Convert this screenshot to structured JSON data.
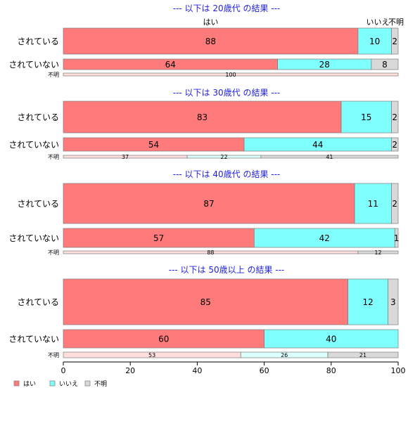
{
  "chart_data": {
    "type": "bar",
    "orientation": "horizontal",
    "stacked": true,
    "xlim": [
      0,
      100
    ],
    "xticks": [
      0,
      20,
      40,
      60,
      80,
      100
    ],
    "column_headers": [
      "はい",
      "いいえ",
      "不明"
    ],
    "series_colors": [
      "#ff7b7b",
      "#80ffff",
      "#d9d9d9"
    ],
    "legend": {
      "position": "bottom-left",
      "entries": [
        "はい",
        "いいえ",
        "不明"
      ]
    },
    "panels": [
      {
        "title": "--- 以下は 20歳代 の結果 ---",
        "categories": [
          "されている",
          "されていない",
          "不明"
        ],
        "series": [
          {
            "name": "はい",
            "values": [
              88,
              64,
              100
            ]
          },
          {
            "name": "いいえ",
            "values": [
              10,
              28,
              0
            ]
          },
          {
            "name": "不明",
            "values": [
              2,
              8,
              0
            ]
          }
        ]
      },
      {
        "title": "--- 以下は 30歳代 の結果 ---",
        "categories": [
          "されている",
          "されていない",
          "不明"
        ],
        "series": [
          {
            "name": "はい",
            "values": [
              83,
              54,
              37
            ]
          },
          {
            "name": "いいえ",
            "values": [
              15,
              44,
              22
            ]
          },
          {
            "name": "不明",
            "values": [
              2,
              2,
              41
            ]
          }
        ]
      },
      {
        "title": "--- 以下は 40歳代 の結果 ---",
        "categories": [
          "されている",
          "されていない",
          "不明"
        ],
        "series": [
          {
            "name": "はい",
            "values": [
              87,
              57,
              88
            ]
          },
          {
            "name": "いいえ",
            "values": [
              11,
              42,
              0
            ]
          },
          {
            "name": "不明",
            "values": [
              2,
              1,
              12
            ]
          }
        ]
      },
      {
        "title": "--- 以下は 50歳以上 の結果 ---",
        "categories": [
          "されている",
          "されていない",
          "不明"
        ],
        "series": [
          {
            "name": "はい",
            "values": [
              85,
              60,
              53
            ]
          },
          {
            "name": "いいえ",
            "values": [
              12,
              40,
              26
            ]
          },
          {
            "name": "不明",
            "values": [
              3,
              0,
              21
            ]
          }
        ]
      }
    ]
  }
}
